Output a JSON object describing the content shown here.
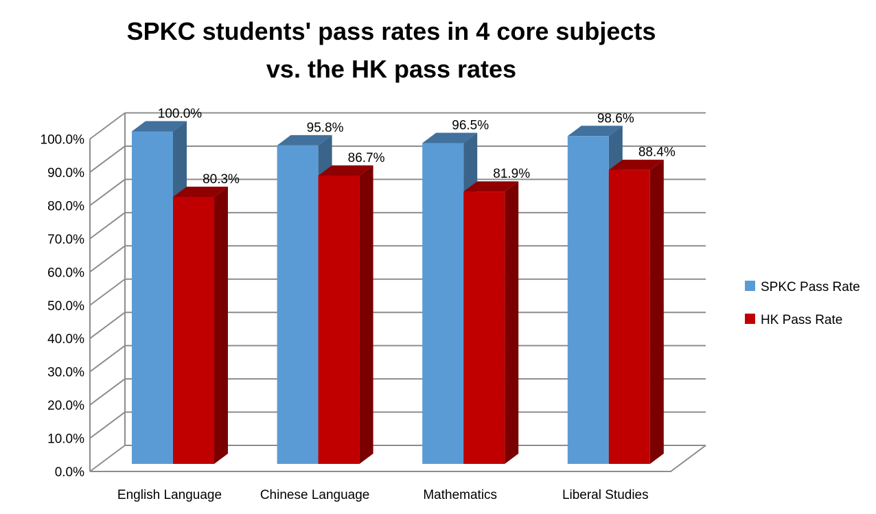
{
  "chart_data": {
    "type": "bar",
    "title_lines": [
      "SPKC students' pass rates in 4 core subjects",
      "vs. the HK pass rates"
    ],
    "categories": [
      "English Language",
      "Chinese Language",
      "Mathematics",
      "Liberal Studies"
    ],
    "series": [
      {
        "name": "SPKC Pass Rate",
        "values": [
          100.0,
          95.8,
          96.5,
          98.6
        ],
        "color": "#5B9BD5",
        "labels": [
          "100.0%",
          "95.8%",
          "96.5%",
          "98.6%"
        ]
      },
      {
        "name": "HK Pass Rate",
        "values": [
          80.3,
          86.7,
          81.9,
          88.4
        ],
        "color": "#C00000",
        "labels": [
          "80.3%",
          "86.7%",
          "81.9%",
          "88.4%"
        ]
      }
    ],
    "ylim": [
      0,
      100
    ],
    "yticks": [
      "0.0%",
      "10.0%",
      "20.0%",
      "30.0%",
      "40.0%",
      "50.0%",
      "60.0%",
      "70.0%",
      "80.0%",
      "90.0%",
      "100.0%"
    ],
    "grid": true,
    "style": "3d-clustered-column",
    "legend_position": "right"
  }
}
